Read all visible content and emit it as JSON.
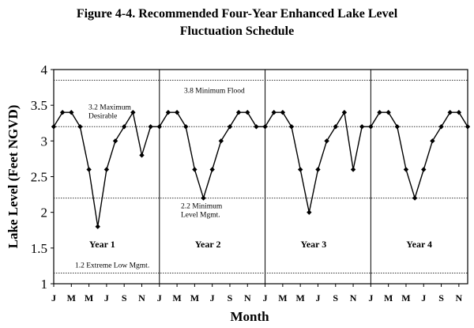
{
  "title_line1": "Figure 4-4.  Recommended Four-Year Enhanced Lake Level",
  "title_line2": "Fluctuation Schedule",
  "chart_data": {
    "type": "line",
    "xlabel": "Month",
    "ylabel": "Lake Level (Feet NGVD)",
    "ylim": [
      1,
      4
    ],
    "yticks": [
      "1",
      "1.5",
      "2",
      "2.5",
      "3",
      "3.5",
      "4"
    ],
    "month_labels": [
      "J",
      "M",
      "M",
      "J",
      "S",
      "N",
      "J",
      "M",
      "M",
      "J",
      "S",
      "N",
      "J",
      "M",
      "M",
      "J",
      "S",
      "N",
      "J",
      "M",
      "M",
      "J",
      "S",
      "N"
    ],
    "year_labels": [
      "Year 1",
      "Year 2",
      "Year 3",
      "Year 4"
    ],
    "series": [
      {
        "values": [
          3.2,
          3.4,
          3.4,
          3.2,
          2.6,
          1.8,
          2.6,
          3.0,
          3.2,
          3.4,
          2.8,
          3.2,
          3.2,
          3.4,
          3.4,
          3.2,
          2.6,
          2.2,
          2.6,
          3.0,
          3.2,
          3.4,
          3.4,
          3.2,
          3.2,
          3.4,
          3.4,
          3.2,
          2.6,
          2.0,
          2.6,
          3.0,
          3.2,
          3.4,
          2.6,
          3.2,
          3.2,
          3.4,
          3.4,
          3.2,
          2.6,
          2.2,
          2.6,
          3.0,
          3.2,
          3.4,
          3.4,
          3.2
        ]
      }
    ],
    "reference_lines": [
      {
        "value": 3.85,
        "label": "3.8 Minimum Flood"
      },
      {
        "value": 3.2,
        "label": "3.2 Maximum Desirable"
      },
      {
        "value": 2.2,
        "label": "2.2 Minimum Level Mgmt."
      },
      {
        "value": 1.15,
        "label": "1.2 Extreme Low Mgmt."
      }
    ]
  }
}
